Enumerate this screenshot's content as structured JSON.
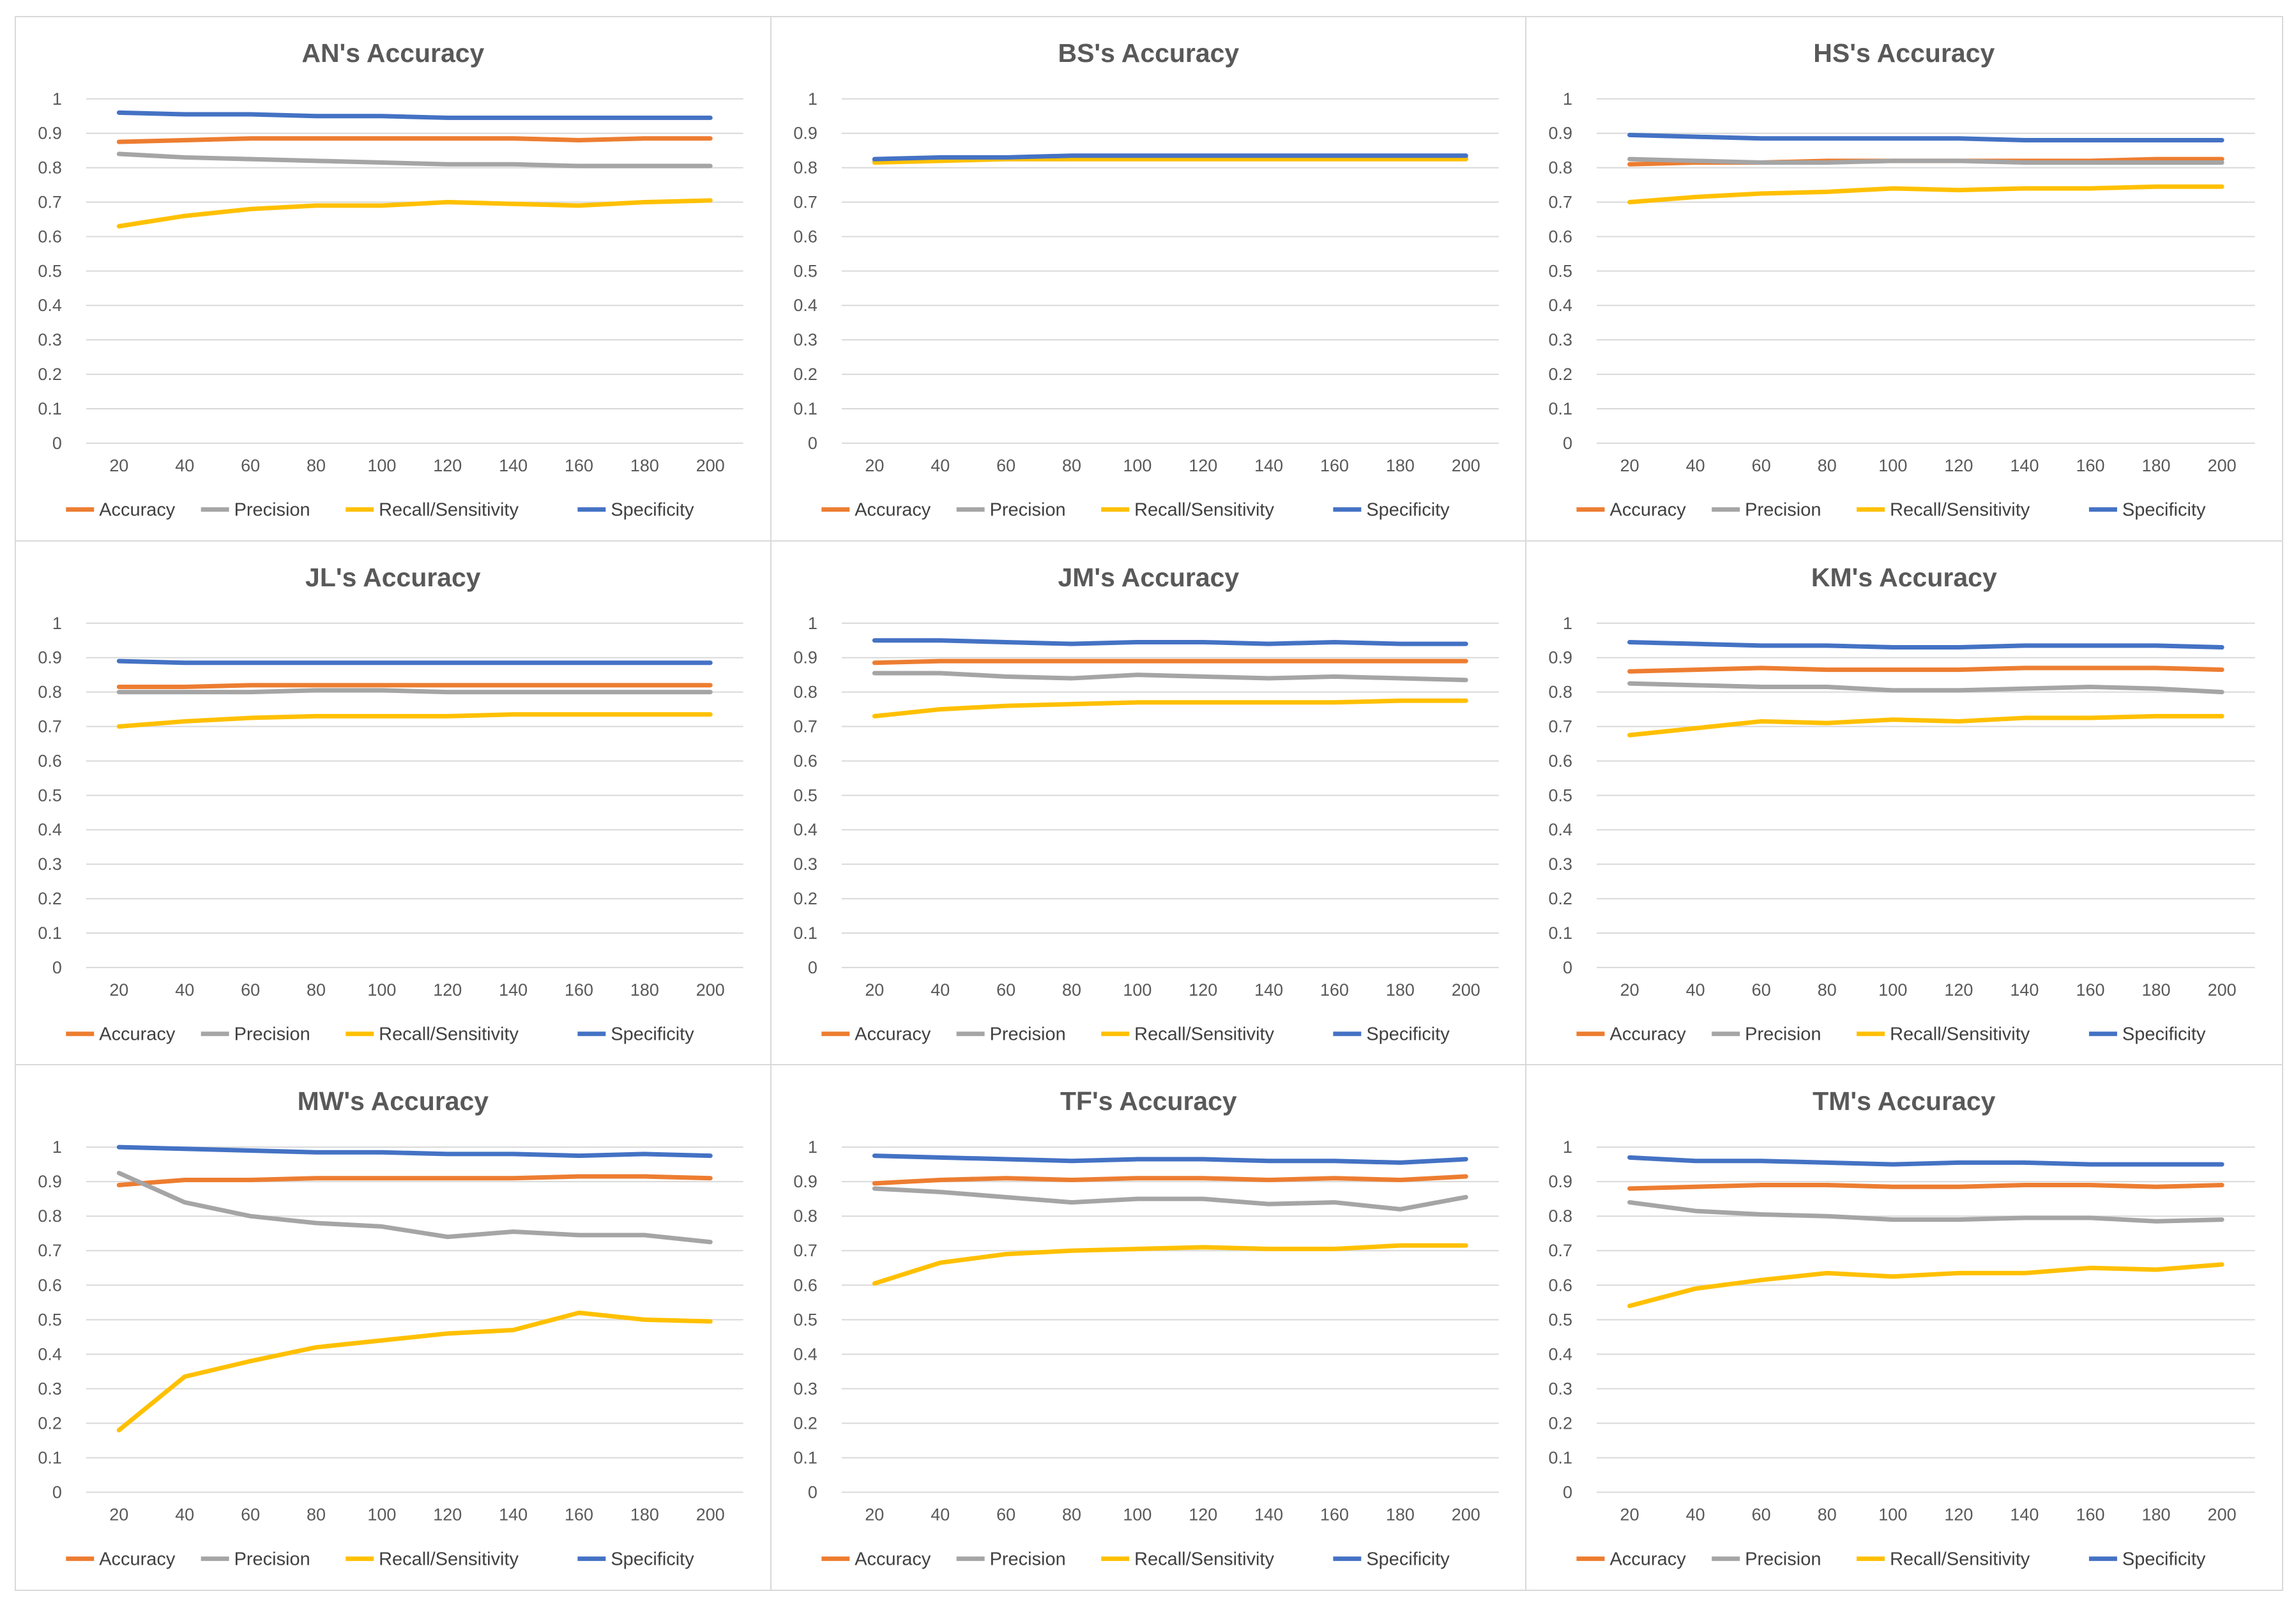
{
  "colors": {
    "Accuracy": "#ED7D31",
    "Precision": "#A5A5A5",
    "Recall/Sensitivity": "#FFC000",
    "Specificity": "#4472C4"
  },
  "chart_data": [
    {
      "type": "line",
      "title": "AN's Accuracy",
      "x": [
        20,
        40,
        60,
        80,
        100,
        120,
        140,
        160,
        180,
        200
      ],
      "ylim": [
        0,
        1
      ],
      "yticks": [
        "0",
        "0.1",
        "0.2",
        "0.3",
        "0.4",
        "0.5",
        "0.6",
        "0.7",
        "0.8",
        "0.9",
        "1"
      ],
      "legend": "bottom",
      "series": [
        {
          "name": "Accuracy",
          "values": [
            0.875,
            0.88,
            0.885,
            0.885,
            0.885,
            0.885,
            0.885,
            0.88,
            0.885,
            0.885
          ]
        },
        {
          "name": "Precision",
          "values": [
            0.84,
            0.83,
            0.825,
            0.82,
            0.815,
            0.81,
            0.81,
            0.805,
            0.805,
            0.805
          ]
        },
        {
          "name": "Recall/Sensitivity",
          "values": [
            0.63,
            0.66,
            0.68,
            0.69,
            0.69,
            0.7,
            0.695,
            0.69,
            0.7,
            0.705
          ]
        },
        {
          "name": "Specificity",
          "values": [
            0.96,
            0.955,
            0.955,
            0.95,
            0.95,
            0.945,
            0.945,
            0.945,
            0.945,
            0.945
          ]
        }
      ]
    },
    {
      "type": "line",
      "title": "BS's Accuracy",
      "x": [
        20,
        40,
        60,
        80,
        100,
        120,
        140,
        160,
        180,
        200
      ],
      "ylim": [
        0,
        1
      ],
      "yticks": [
        "0",
        "0.1",
        "0.2",
        "0.3",
        "0.4",
        "0.5",
        "0.6",
        "0.7",
        "0.8",
        "0.9",
        "1"
      ],
      "legend": "bottom",
      "series": [
        {
          "name": "Accuracy",
          "values": [
            0.82,
            0.825,
            0.83,
            0.83,
            0.83,
            0.83,
            0.83,
            0.83,
            0.83,
            0.83
          ]
        },
        {
          "name": "Precision",
          "values": [
            0.82,
            0.825,
            0.825,
            0.825,
            0.825,
            0.825,
            0.825,
            0.825,
            0.825,
            0.825
          ]
        },
        {
          "name": "Recall/Sensitivity",
          "values": [
            0.815,
            0.82,
            0.825,
            0.825,
            0.825,
            0.825,
            0.825,
            0.825,
            0.825,
            0.825
          ]
        },
        {
          "name": "Specificity",
          "values": [
            0.825,
            0.83,
            0.83,
            0.835,
            0.835,
            0.835,
            0.835,
            0.835,
            0.835,
            0.835
          ]
        }
      ]
    },
    {
      "type": "line",
      "title": "HS's Accuracy",
      "x": [
        20,
        40,
        60,
        80,
        100,
        120,
        140,
        160,
        180,
        200
      ],
      "ylim": [
        0,
        1
      ],
      "yticks": [
        "0",
        "0.1",
        "0.2",
        "0.3",
        "0.4",
        "0.5",
        "0.6",
        "0.7",
        "0.8",
        "0.9",
        "1"
      ],
      "legend": "bottom",
      "series": [
        {
          "name": "Accuracy",
          "values": [
            0.81,
            0.815,
            0.815,
            0.82,
            0.82,
            0.82,
            0.82,
            0.82,
            0.825,
            0.825
          ]
        },
        {
          "name": "Precision",
          "values": [
            0.825,
            0.82,
            0.815,
            0.815,
            0.82,
            0.82,
            0.815,
            0.815,
            0.815,
            0.815
          ]
        },
        {
          "name": "Recall/Sensitivity",
          "values": [
            0.7,
            0.715,
            0.725,
            0.73,
            0.74,
            0.735,
            0.74,
            0.74,
            0.745,
            0.745
          ]
        },
        {
          "name": "Specificity",
          "values": [
            0.895,
            0.89,
            0.885,
            0.885,
            0.885,
            0.885,
            0.88,
            0.88,
            0.88,
            0.88
          ]
        }
      ]
    },
    {
      "type": "line",
      "title": "JL's Accuracy",
      "x": [
        20,
        40,
        60,
        80,
        100,
        120,
        140,
        160,
        180,
        200
      ],
      "ylim": [
        0,
        1
      ],
      "yticks": [
        "0",
        "0.1",
        "0.2",
        "0.3",
        "0.4",
        "0.5",
        "0.6",
        "0.7",
        "0.8",
        "0.9",
        "1"
      ],
      "legend": "bottom",
      "series": [
        {
          "name": "Accuracy",
          "values": [
            0.815,
            0.815,
            0.82,
            0.82,
            0.82,
            0.82,
            0.82,
            0.82,
            0.82,
            0.82
          ]
        },
        {
          "name": "Precision",
          "values": [
            0.8,
            0.8,
            0.8,
            0.805,
            0.805,
            0.8,
            0.8,
            0.8,
            0.8,
            0.8
          ]
        },
        {
          "name": "Recall/Sensitivity",
          "values": [
            0.7,
            0.715,
            0.725,
            0.73,
            0.73,
            0.73,
            0.735,
            0.735,
            0.735,
            0.735
          ]
        },
        {
          "name": "Specificity",
          "values": [
            0.89,
            0.885,
            0.885,
            0.885,
            0.885,
            0.885,
            0.885,
            0.885,
            0.885,
            0.885
          ]
        }
      ]
    },
    {
      "type": "line",
      "title": "JM's Accuracy",
      "x": [
        20,
        40,
        60,
        80,
        100,
        120,
        140,
        160,
        180,
        200
      ],
      "ylim": [
        0,
        1
      ],
      "yticks": [
        "0",
        "0.1",
        "0.2",
        "0.3",
        "0.4",
        "0.5",
        "0.6",
        "0.7",
        "0.8",
        "0.9",
        "1"
      ],
      "legend": "bottom",
      "series": [
        {
          "name": "Accuracy",
          "values": [
            0.885,
            0.89,
            0.89,
            0.89,
            0.89,
            0.89,
            0.89,
            0.89,
            0.89,
            0.89
          ]
        },
        {
          "name": "Precision",
          "values": [
            0.855,
            0.855,
            0.845,
            0.84,
            0.85,
            0.845,
            0.84,
            0.845,
            0.84,
            0.835
          ]
        },
        {
          "name": "Recall/Sensitivity",
          "values": [
            0.73,
            0.75,
            0.76,
            0.765,
            0.77,
            0.77,
            0.77,
            0.77,
            0.775,
            0.775
          ]
        },
        {
          "name": "Specificity",
          "values": [
            0.95,
            0.95,
            0.945,
            0.94,
            0.945,
            0.945,
            0.94,
            0.945,
            0.94,
            0.94
          ]
        }
      ]
    },
    {
      "type": "line",
      "title": "KM's Accuracy",
      "x": [
        20,
        40,
        60,
        80,
        100,
        120,
        140,
        160,
        180,
        200
      ],
      "ylim": [
        0,
        1
      ],
      "yticks": [
        "0",
        "0.1",
        "0.2",
        "0.3",
        "0.4",
        "0.5",
        "0.6",
        "0.7",
        "0.8",
        "0.9",
        "1"
      ],
      "legend": "bottom",
      "series": [
        {
          "name": "Accuracy",
          "values": [
            0.86,
            0.865,
            0.87,
            0.865,
            0.865,
            0.865,
            0.87,
            0.87,
            0.87,
            0.865
          ]
        },
        {
          "name": "Precision",
          "values": [
            0.825,
            0.82,
            0.815,
            0.815,
            0.805,
            0.805,
            0.81,
            0.815,
            0.81,
            0.8
          ]
        },
        {
          "name": "Recall/Sensitivity",
          "values": [
            0.675,
            0.695,
            0.715,
            0.71,
            0.72,
            0.715,
            0.725,
            0.725,
            0.73,
            0.73
          ]
        },
        {
          "name": "Specificity",
          "values": [
            0.945,
            0.94,
            0.935,
            0.935,
            0.93,
            0.93,
            0.935,
            0.935,
            0.935,
            0.93
          ]
        }
      ]
    },
    {
      "type": "line",
      "title": "MW's Accuracy",
      "x": [
        20,
        40,
        60,
        80,
        100,
        120,
        140,
        160,
        180,
        200
      ],
      "ylim": [
        0,
        1
      ],
      "yticks": [
        "0",
        "0.1",
        "0.2",
        "0.3",
        "0.4",
        "0.5",
        "0.6",
        "0.7",
        "0.8",
        "0.9",
        "1"
      ],
      "legend": "bottom",
      "series": [
        {
          "name": "Accuracy",
          "values": [
            0.89,
            0.905,
            0.905,
            0.91,
            0.91,
            0.91,
            0.91,
            0.915,
            0.915,
            0.91
          ]
        },
        {
          "name": "Precision",
          "values": [
            0.925,
            0.84,
            0.8,
            0.78,
            0.77,
            0.74,
            0.755,
            0.745,
            0.745,
            0.725
          ]
        },
        {
          "name": "Recall/Sensitivity",
          "values": [
            0.18,
            0.335,
            0.38,
            0.42,
            0.44,
            0.46,
            0.47,
            0.52,
            0.5,
            0.495
          ]
        },
        {
          "name": "Specificity",
          "values": [
            1.0,
            0.995,
            0.99,
            0.985,
            0.985,
            0.98,
            0.98,
            0.975,
            0.98,
            0.975
          ]
        }
      ]
    },
    {
      "type": "line",
      "title": "TF's Accuracy",
      "x": [
        20,
        40,
        60,
        80,
        100,
        120,
        140,
        160,
        180,
        200
      ],
      "ylim": [
        0,
        1
      ],
      "yticks": [
        "0",
        "0.1",
        "0.2",
        "0.3",
        "0.4",
        "0.5",
        "0.6",
        "0.7",
        "0.8",
        "0.9",
        "1"
      ],
      "legend": "bottom",
      "series": [
        {
          "name": "Accuracy",
          "values": [
            0.895,
            0.905,
            0.91,
            0.905,
            0.91,
            0.91,
            0.905,
            0.91,
            0.905,
            0.915
          ]
        },
        {
          "name": "Precision",
          "values": [
            0.88,
            0.87,
            0.855,
            0.84,
            0.85,
            0.85,
            0.835,
            0.84,
            0.82,
            0.855
          ]
        },
        {
          "name": "Recall/Sensitivity",
          "values": [
            0.605,
            0.665,
            0.69,
            0.7,
            0.705,
            0.71,
            0.705,
            0.705,
            0.715,
            0.715
          ]
        },
        {
          "name": "Specificity",
          "values": [
            0.975,
            0.97,
            0.965,
            0.96,
            0.965,
            0.965,
            0.96,
            0.96,
            0.955,
            0.965
          ]
        }
      ]
    },
    {
      "type": "line",
      "title": "TM's Accuracy",
      "x": [
        20,
        40,
        60,
        80,
        100,
        120,
        140,
        160,
        180,
        200
      ],
      "ylim": [
        0,
        1
      ],
      "yticks": [
        "0",
        "0.1",
        "0.2",
        "0.3",
        "0.4",
        "0.5",
        "0.6",
        "0.7",
        "0.8",
        "0.9",
        "1"
      ],
      "legend": "bottom",
      "series": [
        {
          "name": "Accuracy",
          "values": [
            0.88,
            0.885,
            0.89,
            0.89,
            0.885,
            0.885,
            0.89,
            0.89,
            0.885,
            0.89
          ]
        },
        {
          "name": "Precision",
          "values": [
            0.84,
            0.815,
            0.805,
            0.8,
            0.79,
            0.79,
            0.795,
            0.795,
            0.785,
            0.79
          ]
        },
        {
          "name": "Recall/Sensitivity",
          "values": [
            0.54,
            0.59,
            0.615,
            0.635,
            0.625,
            0.635,
            0.635,
            0.65,
            0.645,
            0.66
          ]
        },
        {
          "name": "Specificity",
          "values": [
            0.97,
            0.96,
            0.96,
            0.955,
            0.95,
            0.955,
            0.955,
            0.95,
            0.95,
            0.95
          ]
        }
      ]
    }
  ]
}
